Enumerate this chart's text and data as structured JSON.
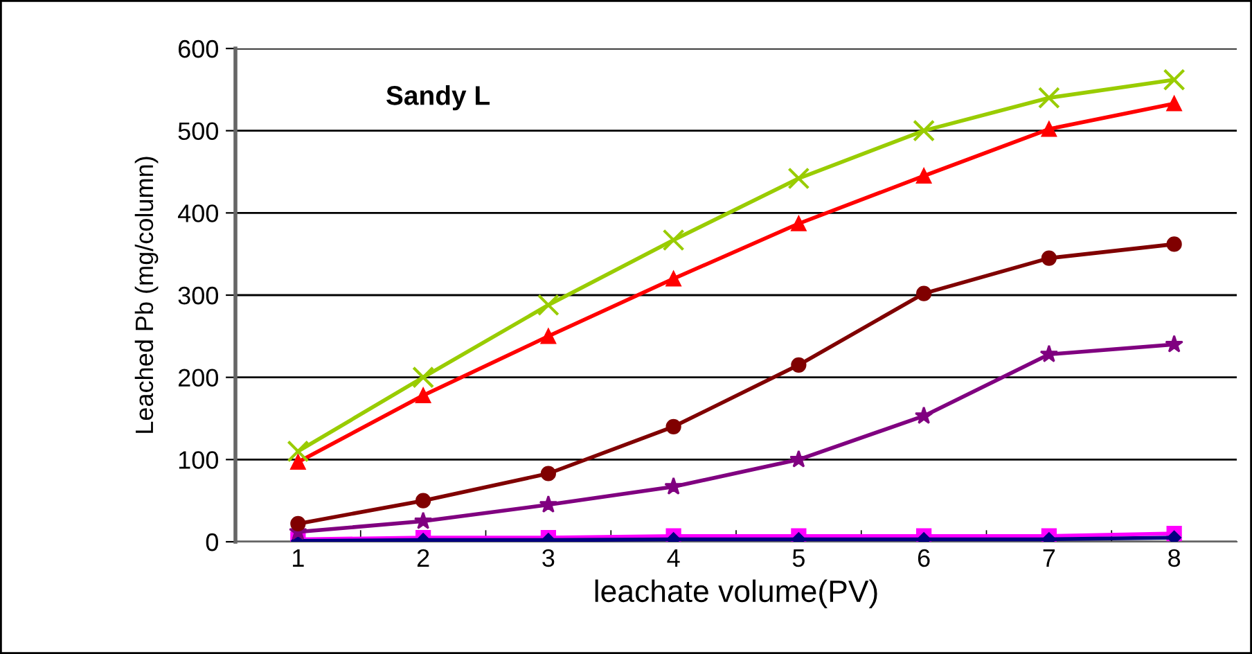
{
  "chart_data": {
    "type": "line",
    "title": "Sandy L",
    "xlabel": "leachate volume(PV)",
    "ylabel": "Leached Pb (mg/column)",
    "categories": [
      "1",
      "2",
      "3",
      "4",
      "5",
      "6",
      "7",
      "8"
    ],
    "series": [
      {
        "color": "#99cc00",
        "marker": "cross",
        "values": [
          110,
          200,
          288,
          367,
          442,
          500,
          540,
          562
        ]
      },
      {
        "color": "#ff0000",
        "marker": "triangle",
        "values": [
          97,
          178,
          250,
          320,
          387,
          445,
          502,
          533
        ]
      },
      {
        "color": "#800000",
        "marker": "circle",
        "values": [
          22,
          50,
          83,
          140,
          215,
          302,
          345,
          362
        ]
      },
      {
        "color": "#800080",
        "marker": "star",
        "values": [
          12,
          25,
          45,
          67,
          100,
          153,
          228,
          240
        ]
      },
      {
        "color": "#000080",
        "marker": "diamond",
        "values": [
          1,
          2,
          2,
          3,
          3,
          3,
          3,
          5
        ]
      },
      {
        "color": "#ff00ff",
        "marker": "square",
        "values": [
          3,
          5,
          5,
          7,
          7,
          7,
          7,
          10
        ]
      }
    ],
    "ylim": [
      0,
      600
    ],
    "yticks": [
      0,
      100,
      200,
      300,
      400,
      500,
      600
    ],
    "grid": "y",
    "legend": false
  }
}
